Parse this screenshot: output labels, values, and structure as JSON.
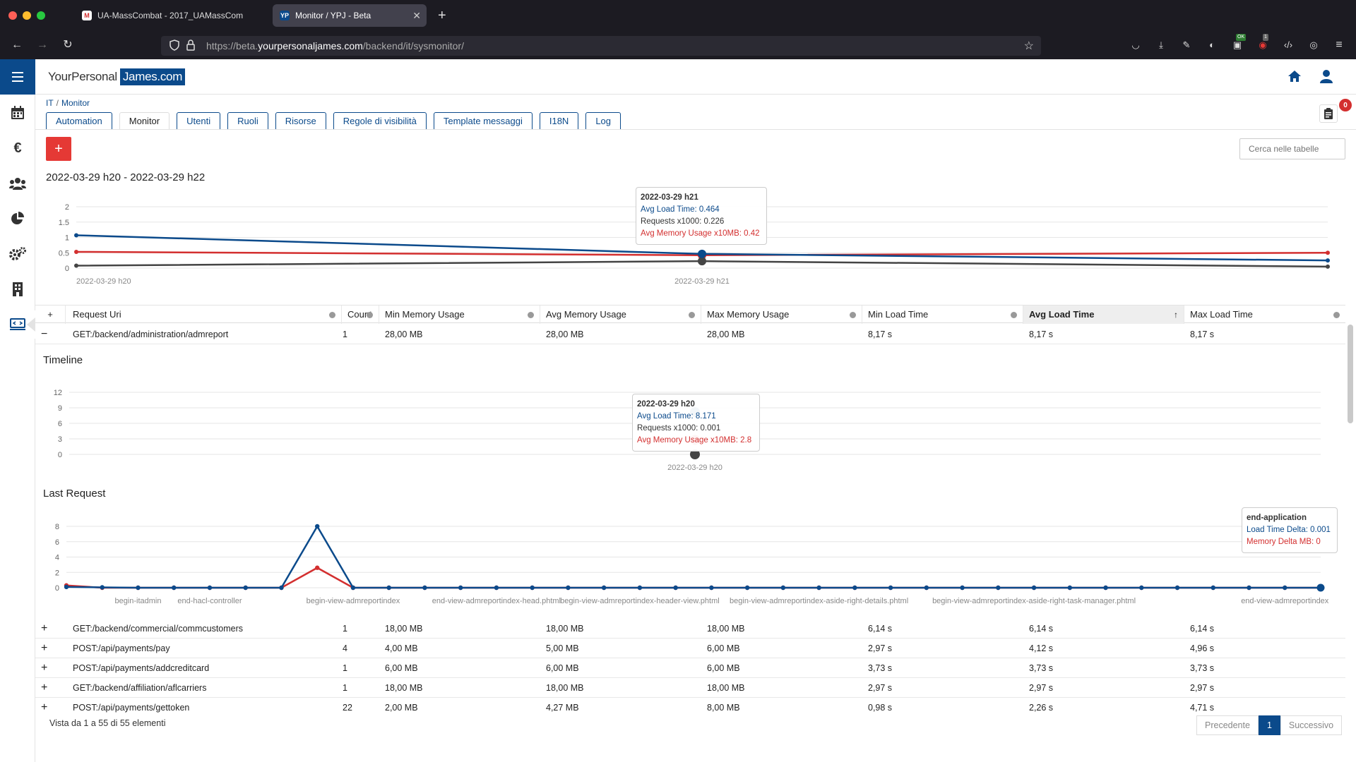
{
  "browser": {
    "tabs": [
      {
        "title": "UA-MassCombat - 2017_UAMassCom",
        "favicon": "gmail-icon"
      },
      {
        "title": "Monitor / YPJ - Beta",
        "favicon": "YP",
        "active": true
      }
    ],
    "url_prefix": "https://beta.",
    "url_domain": "yourpersonaljames.com",
    "url_path": "/backend/it/sysmonitor/",
    "ext_badge_ok": "OK",
    "ext_badge_count": "1"
  },
  "app": {
    "logo_part1": "YourPersonal",
    "logo_part2": "James.com",
    "breadcrumb": [
      "IT",
      "Monitor"
    ],
    "breadcrumb_sep": "/",
    "nav_tabs": [
      "Automation",
      "Monitor",
      "Utenti",
      "Ruoli",
      "Risorse",
      "Regole di visibilità",
      "Template messaggi",
      "I18N",
      "Log"
    ],
    "active_tab": "Monitor",
    "add_label": "+",
    "notification_count": "0",
    "search_placeholder": "Cerca nelle tabelle",
    "colors": {
      "primary": "#0b4a8b",
      "red": "#d32f2f",
      "dark": "#444444"
    }
  },
  "main_chart": {
    "title": "2022-03-29 h20 - 2022-03-29 h22",
    "tooltip": {
      "header": "2022-03-29 h21",
      "line1": "Avg Load Time: 0.464",
      "line2": "Requests x1000: 0.226",
      "line3": "Avg Memory Usage x10MB: 0.42"
    }
  },
  "table": {
    "columns": [
      "+",
      "Request Uri",
      "Count",
      "Min Memory Usage",
      "Avg Memory Usage",
      "Max Memory Usage",
      "Min Load Time",
      "Avg Load Time",
      "Max Load Time"
    ],
    "sorted_column": "Avg Load Time",
    "expanded_row": {
      "toggle": "−",
      "uri": "GET:/backend/administration/admreport",
      "count": "1",
      "min_mem": "28,00 MB",
      "avg_mem": "28,00 MB",
      "max_mem": "28,00 MB",
      "min_load": "8,17 s",
      "avg_load": "8,17 s",
      "max_load": "8,17 s"
    },
    "rows": [
      {
        "toggle": "+",
        "uri": "GET:/backend/commercial/commcustomers",
        "count": "1",
        "min_mem": "18,00 MB",
        "avg_mem": "18,00 MB",
        "max_mem": "18,00 MB",
        "min_load": "6,14 s",
        "avg_load": "6,14 s",
        "max_load": "6,14 s"
      },
      {
        "toggle": "+",
        "uri": "POST:/api/payments/pay",
        "count": "4",
        "min_mem": "4,00 MB",
        "avg_mem": "5,00 MB",
        "max_mem": "6,00 MB",
        "min_load": "2,97 s",
        "avg_load": "4,12 s",
        "max_load": "4,96 s"
      },
      {
        "toggle": "+",
        "uri": "POST:/api/payments/addcreditcard",
        "count": "1",
        "min_mem": "6,00 MB",
        "avg_mem": "6,00 MB",
        "max_mem": "6,00 MB",
        "min_load": "3,73 s",
        "avg_load": "3,73 s",
        "max_load": "3,73 s"
      },
      {
        "toggle": "+",
        "uri": "GET:/backend/affiliation/aflcarriers",
        "count": "1",
        "min_mem": "18,00 MB",
        "avg_mem": "18,00 MB",
        "max_mem": "18,00 MB",
        "min_load": "2,97 s",
        "avg_load": "2,97 s",
        "max_load": "2,97 s"
      },
      {
        "toggle": "+",
        "uri": "POST:/api/payments/gettoken",
        "count": "22",
        "min_mem": "2,00 MB",
        "avg_mem": "4,27 MB",
        "max_mem": "8,00 MB",
        "min_load": "0,98 s",
        "avg_load": "2,26 s",
        "max_load": "4,71 s"
      }
    ],
    "footer": "Vista da 1 a 55 di 55 elementi",
    "pager": {
      "prev": "Precedente",
      "current": "1",
      "next": "Successivo"
    }
  },
  "timeline": {
    "title": "Timeline",
    "tooltip": {
      "header": "2022-03-29 h20",
      "line1": "Avg Load Time: 8.171",
      "line2": "Requests x1000: 0.001",
      "line3": "Avg Memory Usage x10MB: 2.8"
    }
  },
  "last_request": {
    "title": "Last Request",
    "tooltip": {
      "header": "end-application",
      "line1": "Load Time Delta: 0.001",
      "line2": "Memory Delta MB: 0"
    }
  },
  "chart_data": [
    {
      "type": "line",
      "x": [
        "2022-03-29 h20",
        "2022-03-29 h21",
        "2022-03-29 h22"
      ],
      "x_tick_labels": [
        "2022-03-29 h20",
        "2022-03-29 h21"
      ],
      "ylim": [
        0,
        2
      ],
      "y_ticks": [
        "0",
        "0.5",
        "1",
        "1.5",
        "2"
      ],
      "grid": true,
      "series": [
        {
          "name": "Avg Load Time",
          "color": "#0b4a8b",
          "values": [
            1.07,
            0.464,
            0.25
          ]
        },
        {
          "name": "Requests x1000",
          "color": "#444444",
          "values": [
            0.08,
            0.226,
            0.05
          ]
        },
        {
          "name": "Avg Memory Usage x10MB",
          "color": "#d32f2f",
          "values": [
            0.53,
            0.42,
            0.5
          ]
        }
      ]
    },
    {
      "type": "line",
      "x": [
        "2022-03-29 h20"
      ],
      "x_tick_labels": [
        "2022-03-29 h20"
      ],
      "ylim": [
        0,
        12
      ],
      "y_ticks": [
        "0",
        "3",
        "6",
        "9",
        "12"
      ],
      "grid": true,
      "series": [
        {
          "name": "Avg Load Time",
          "color": "#0b4a8b",
          "values": [
            8.171
          ]
        },
        {
          "name": "Requests x1000",
          "color": "#444444",
          "values": [
            0.001
          ]
        },
        {
          "name": "Avg Memory Usage x10MB",
          "color": "#d32f2f",
          "values": [
            2.8
          ]
        }
      ]
    },
    {
      "type": "line",
      "point_count": 36,
      "x_tick_labels": [
        "begin-itadmin",
        "end-hacl-controller",
        "begin-view-admreportindex",
        "end-view-admreportindex-head.phtml",
        "begin-view-admreportindex-header-view.phtml",
        "begin-view-admreportindex-aside-right-details.phtml",
        "begin-view-admreportindex-aside-right-task-manager.phtml",
        "end-view-admreportindex"
      ],
      "ylim": [
        0,
        8
      ],
      "y_ticks": [
        "0",
        "2",
        "4",
        "6",
        "8"
      ],
      "grid": true,
      "series": [
        {
          "name": "Load Time Delta",
          "color": "#0b4a8b",
          "values": [
            0.1,
            0.05,
            0,
            0,
            0,
            0,
            0,
            8,
            0,
            0,
            0,
            0,
            0,
            0,
            0,
            0,
            0,
            0,
            0,
            0,
            0,
            0,
            0,
            0,
            0,
            0,
            0,
            0,
            0,
            0,
            0,
            0,
            0,
            0,
            0,
            0.001
          ]
        },
        {
          "name": "Memory Delta MB",
          "color": "#d32f2f",
          "values": [
            0.3,
            0,
            0,
            0,
            0,
            0,
            0,
            2.6,
            0,
            0,
            0,
            0,
            0,
            0,
            0,
            0,
            0,
            0,
            0,
            0,
            0,
            0,
            0,
            0,
            0,
            0,
            0,
            0,
            0,
            0,
            0,
            0,
            0,
            0,
            0,
            0
          ]
        }
      ]
    }
  ]
}
